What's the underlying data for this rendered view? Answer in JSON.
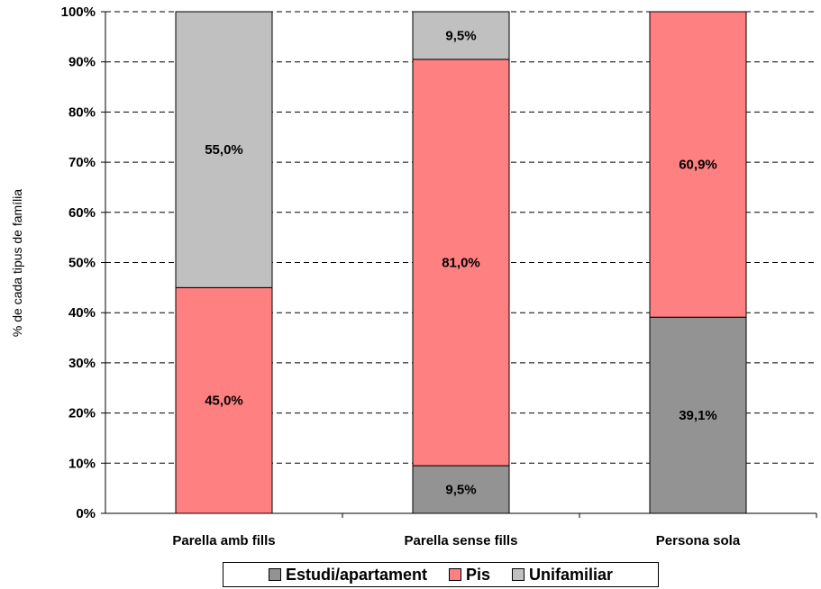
{
  "chart_data": {
    "type": "bar",
    "stacked": true,
    "ylabel": "% de cada tipus de família",
    "ylim": [
      0,
      100
    ],
    "yticks": [
      "0%",
      "10%",
      "20%",
      "30%",
      "40%",
      "50%",
      "60%",
      "70%",
      "80%",
      "90%",
      "100%"
    ],
    "categories": [
      "Parella amb fills",
      "Parella sense fills",
      "Persona sola"
    ],
    "series": [
      {
        "name": "Estudi/apartament",
        "color": "#939393",
        "values": [
          0,
          9.5,
          39.1
        ],
        "labels": [
          "",
          "9,5%",
          "39,1%"
        ]
      },
      {
        "name": "Pis",
        "color": "#ff8080",
        "values": [
          45.0,
          81.0,
          60.9
        ],
        "labels": [
          "45,0%",
          "81,0%",
          "60,9%"
        ]
      },
      {
        "name": "Unifamiliar",
        "color": "#c0c0c0",
        "values": [
          55.0,
          9.5,
          0
        ],
        "labels": [
          "55,0%",
          "9,5%",
          ""
        ]
      }
    ],
    "grid": true,
    "legend_position": "bottom"
  }
}
